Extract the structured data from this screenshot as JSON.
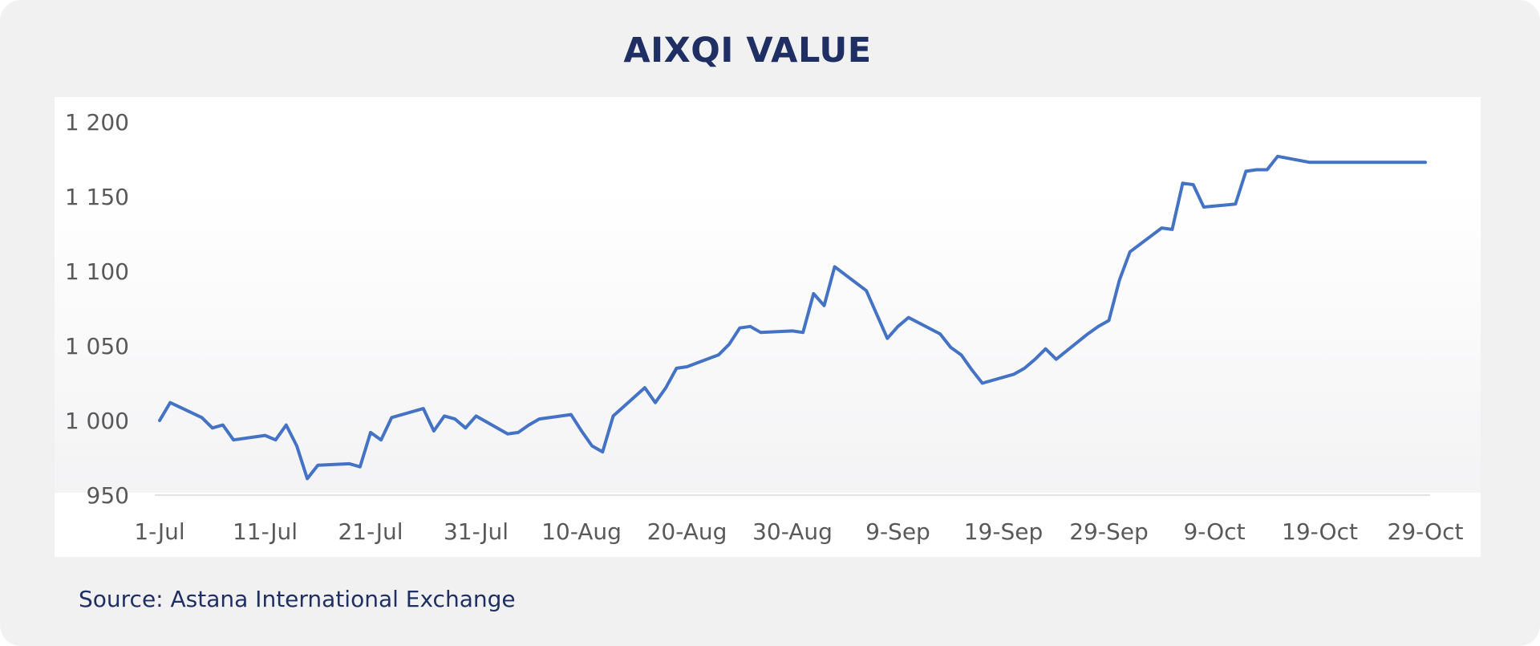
{
  "title": "AIXQI VALUE",
  "source": "Source: Astana International Exchange",
  "colors": {
    "line": "#4472c4",
    "title": "#1f2f63",
    "tick_text": "#595959",
    "baseline": "#d9d9d9",
    "card_background": "#f1f1f2"
  },
  "chart_data": {
    "type": "line",
    "title": "AIXQI VALUE",
    "xlabel": "",
    "ylabel": "",
    "ylim": [
      950,
      1200
    ],
    "y_ticks": [
      950,
      1000,
      1050,
      1100,
      1150,
      1200
    ],
    "y_tick_labels": [
      "950",
      "1 000",
      "1 050",
      "1 100",
      "1 150",
      "1 200"
    ],
    "x_tick_labels": [
      "1-Jul",
      "11-Jul",
      "21-Jul",
      "31-Jul",
      "10-Aug",
      "20-Aug",
      "30-Aug",
      "9-Sep",
      "19-Sep",
      "29-Sep",
      "9-Oct",
      "19-Oct",
      "29-Oct"
    ],
    "x_tick_dates": [
      "07-01",
      "07-11",
      "07-21",
      "07-31",
      "08-10",
      "08-20",
      "08-30",
      "09-09",
      "09-19",
      "09-29",
      "10-09",
      "10-19",
      "10-29"
    ],
    "grid": false,
    "legend": "none",
    "series": [
      {
        "x": [
          "07-01",
          "07-02",
          "07-05",
          "07-06",
          "07-07",
          "07-08",
          "07-11",
          "07-12",
          "07-13",
          "07-14",
          "07-15",
          "07-16",
          "07-19",
          "07-20",
          "07-21",
          "07-22",
          "07-23",
          "07-26",
          "07-27",
          "07-28",
          "07-29",
          "07-30",
          "07-31",
          "08-02",
          "08-03",
          "08-04",
          "08-05",
          "08-06",
          "08-09",
          "08-10",
          "08-11",
          "08-12",
          "08-13",
          "08-16",
          "08-17",
          "08-18",
          "08-19",
          "08-20",
          "08-23",
          "08-24",
          "08-25",
          "08-26",
          "08-27",
          "08-30",
          "08-31",
          "09-01",
          "09-02",
          "09-03",
          "09-06",
          "09-07",
          "09-08",
          "09-09",
          "09-10",
          "09-13",
          "09-14",
          "09-15",
          "09-16",
          "09-17",
          "09-20",
          "09-21",
          "09-22",
          "09-23",
          "09-24",
          "09-27",
          "09-28",
          "09-29",
          "09-30",
          "10-01",
          "10-04",
          "10-05",
          "10-06",
          "10-07",
          "10-08",
          "10-11",
          "10-12",
          "10-13",
          "10-14",
          "10-15",
          "10-18",
          "10-19",
          "10-20",
          "10-21",
          "10-22",
          "10-25",
          "10-26",
          "10-27",
          "10-28",
          "10-29"
        ],
        "y": [
          1000,
          1012,
          1002,
          995,
          997,
          987,
          990,
          987,
          997,
          983,
          961,
          970,
          971,
          969,
          992,
          987,
          1002,
          1008,
          993,
          1003,
          1001,
          995,
          1003,
          995,
          991,
          992,
          997,
          1001,
          1004,
          993,
          983,
          979,
          1003,
          1022,
          1012,
          1022,
          1035,
          1036,
          1044,
          1051,
          1062,
          1063,
          1059,
          1060,
          1059,
          1085,
          1077,
          1103,
          1087,
          1071,
          1055,
          1063,
          1069,
          1058,
          1049,
          1044,
          1034,
          1025,
          1031,
          1035,
          1041,
          1048,
          1041,
          1058,
          1063,
          1067,
          1094,
          1113,
          1129,
          1128,
          1159,
          1158,
          1143,
          1145,
          1167,
          1168,
          1168,
          1177,
          1173,
          1173,
          1173,
          1173,
          1173,
          1173,
          1173,
          1173,
          1173,
          1173
        ]
      }
    ]
  }
}
